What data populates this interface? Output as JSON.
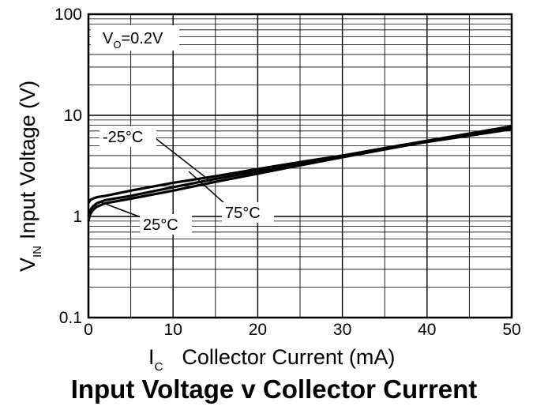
{
  "chart_data": {
    "type": "line",
    "title": "Input Voltage v Collector Current",
    "xlabel": {
      "main": "I",
      "sub": "C",
      "rest": "Collector Current (mA)"
    },
    "ylabel": {
      "main": "V",
      "sub": "IN",
      "rest": "Input Voltage (V)"
    },
    "xlim": [
      0,
      50
    ],
    "ylim": [
      0.1,
      100
    ],
    "yscale": "log",
    "grid": true,
    "x_ticks": [
      "0",
      "10",
      "20",
      "30",
      "40",
      "50"
    ],
    "y_ticks": [
      "0.1",
      "1",
      "10",
      "100"
    ],
    "condition": {
      "main": "V",
      "sub": "O",
      "rest": "=0.2V"
    },
    "series": [
      {
        "name": "-25°C",
        "x": [
          0,
          0.2,
          0.5,
          1,
          2,
          5,
          10,
          15,
          20,
          25,
          30,
          35,
          40,
          45,
          50
        ],
        "y": [
          1.35,
          1.45,
          1.5,
          1.55,
          1.6,
          1.8,
          2.15,
          2.5,
          2.95,
          3.45,
          4.0,
          4.75,
          5.6,
          6.6,
          7.8
        ]
      },
      {
        "name": "25°C",
        "x": [
          0,
          0.2,
          0.5,
          1,
          2,
          5,
          10,
          15,
          20,
          25,
          30,
          35,
          40,
          45,
          50
        ],
        "y": [
          0.9,
          1.05,
          1.15,
          1.25,
          1.35,
          1.5,
          1.8,
          2.2,
          2.65,
          3.2,
          3.85,
          4.6,
          5.5,
          6.5,
          7.7
        ]
      },
      {
        "name": "75°C",
        "x": [
          0,
          0.2,
          0.5,
          1,
          2,
          5,
          10,
          15,
          20,
          25,
          30,
          35,
          40,
          45,
          50
        ],
        "y": [
          1.0,
          1.15,
          1.25,
          1.35,
          1.45,
          1.6,
          1.95,
          2.35,
          2.8,
          3.3,
          3.9,
          4.65,
          5.45,
          6.3,
          7.3
        ]
      }
    ]
  }
}
